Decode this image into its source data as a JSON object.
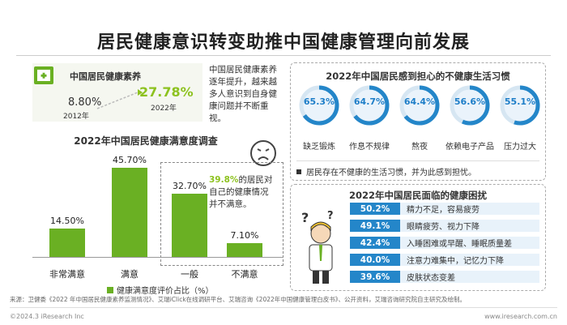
{
  "main_title": "居民健康意识转变助推中国健康管理向前发展",
  "literacy": {
    "title": "中国居民健康素养",
    "val_2012": "8.80%",
    "yr_2012": "2012年",
    "val_2022": "27.78%",
    "yr_2022": "2022年",
    "text": "中国居民健康素养逐年提升，越来越多人意识到自身健康问题并不断重视。"
  },
  "chart_data": {
    "type": "bar",
    "title": "2022年中国居民健康满意度调查",
    "categories": [
      "非常满意",
      "满意",
      "一般",
      "不满意"
    ],
    "series": [
      {
        "name": "健康满意度评价占比（%）",
        "values": [
          14.5,
          45.7,
          32.7,
          7.1
        ]
      }
    ],
    "value_labels": [
      "14.50%",
      "45.70%",
      "32.70%",
      "7.10%"
    ],
    "ylim": [
      0,
      50
    ],
    "grid": false,
    "legend_position": "bottom"
  },
  "sat_note": {
    "pct": "39.8%",
    "text": "的居民对自己的健康情况并不满意。"
  },
  "habits": {
    "title": "2022年中国居民感到担心的不健康生活习惯",
    "items": [
      {
        "pct": "65.3%",
        "value": 65.3,
        "label": "缺乏锻炼",
        "icon": "dumbbell-icon"
      },
      {
        "pct": "64.7%",
        "value": 64.7,
        "label": "作息不规律",
        "icon": "clock-icon"
      },
      {
        "pct": "64.4%",
        "value": 64.4,
        "label": "熬夜",
        "icon": "moon-icon"
      },
      {
        "pct": "56.6%",
        "value": 56.6,
        "label": "依赖电子产品",
        "icon": "phone-icon"
      },
      {
        "pct": "55.1%",
        "value": 55.1,
        "label": "压力过大",
        "icon": "stress-icon"
      }
    ],
    "note": "居民存在不健康的生活习惯，并为此感到担忧。"
  },
  "troubles": {
    "title": "2022年中国居民面临的健康困扰",
    "items": [
      {
        "pct": "50.2%",
        "desc": "精力不足，容易疲劳"
      },
      {
        "pct": "49.1%",
        "desc": "眼睛疲劳、视力下降"
      },
      {
        "pct": "42.4%",
        "desc": "入睡困难或早醒、睡眠质量差"
      },
      {
        "pct": "40.0%",
        "desc": "注意力难集中，记忆力下降"
      },
      {
        "pct": "39.6%",
        "desc": "皮肤状态变差"
      }
    ]
  },
  "source": "来源：卫健委《2022 年中国居民健康素养监测情况》、艾瑞iClick在线调研平台、艾瑞咨询《2022年中国健康管理白皮书》、公开资料，艾瑞咨询研究院自主研究及绘制。",
  "copyright": "©2024.3 iResearch Inc",
  "website": "www.iresearch.com.cn",
  "colors": {
    "green": "#6ab023",
    "lime": "#8dc21f",
    "blue": "#2486c9"
  }
}
